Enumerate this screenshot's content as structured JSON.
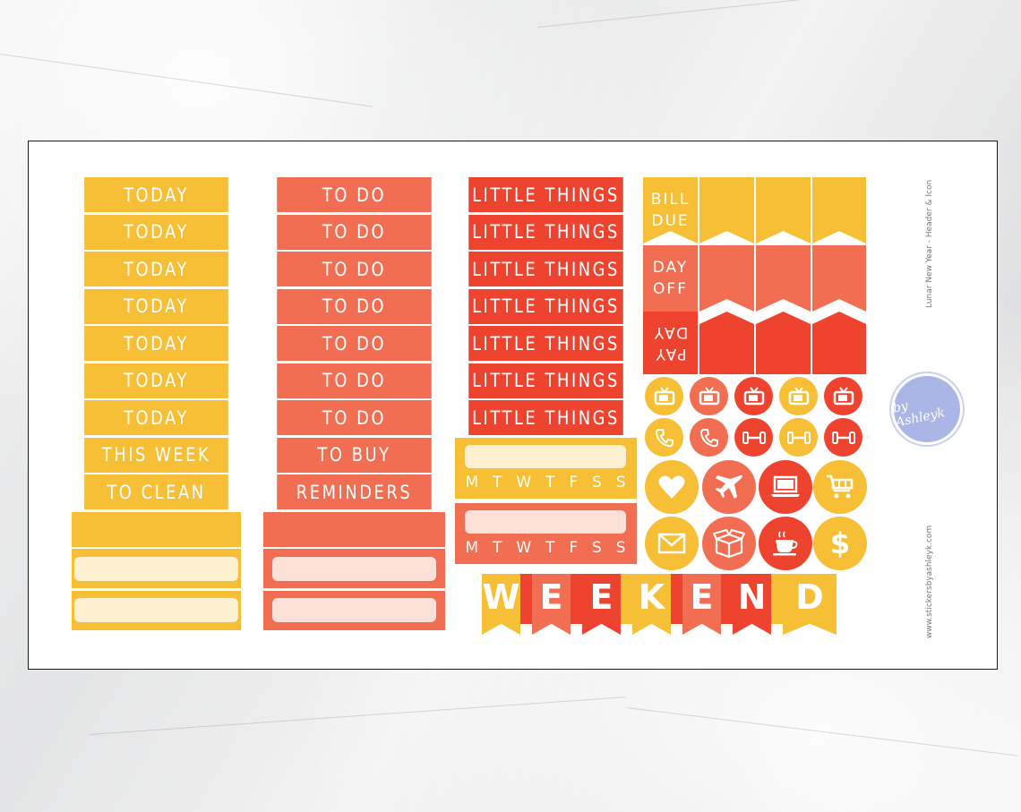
{
  "colors": {
    "yellow": "#f7bf36",
    "salmon": "#f26e52",
    "red": "#ee432e",
    "yellow_input": "#fdf0d0",
    "salmon_input": "#fde0d8"
  },
  "column_yellow": {
    "strips": [
      "TODAY",
      "TODAY",
      "TODAY",
      "TODAY",
      "TODAY",
      "TODAY",
      "TODAY",
      "THIS WEEK",
      "TO CLEAN"
    ]
  },
  "column_salmon": {
    "strips": [
      "TO DO",
      "TO DO",
      "TO DO",
      "TO DO",
      "TO DO",
      "TO DO",
      "TO DO",
      "TO BUY",
      "REMINDERS"
    ]
  },
  "column_red": {
    "strips": [
      "LITTLE THINGS",
      "LITTLE THINGS",
      "LITTLE THINGS",
      "LITTLE THINGS",
      "LITTLE THINGS",
      "LITTLE THINGS",
      "LITTLE THINGS"
    ]
  },
  "trackers": {
    "days": [
      "M",
      "T",
      "W",
      "T",
      "F",
      "S",
      "S"
    ]
  },
  "flags": {
    "bill_due": [
      "BILL",
      "DUE"
    ],
    "day_off": [
      "DAY",
      "OFF"
    ],
    "pay_day": [
      "PAY",
      "DAY"
    ]
  },
  "circle_icons": [
    [
      "tv-icon",
      "tv-icon",
      "tv-icon",
      "tv-icon",
      "tv-icon"
    ],
    [
      "phone-icon",
      "phone-icon",
      "dumbbell-icon",
      "dumbbell-icon",
      "dumbbell-icon"
    ],
    [
      "heart-icon",
      "airplane-icon",
      "laptop-icon",
      "cart-icon"
    ],
    [
      "envelope-icon",
      "box-icon",
      "coffee-icon",
      "dollar-icon"
    ]
  ],
  "banner": {
    "letters": [
      "W",
      "E",
      "E",
      "K",
      "E",
      "N",
      "D"
    ]
  },
  "side_text": {
    "title": "Lunar New Year - Header & Icon",
    "website": "www.stickersbyashleyk.com",
    "badge": "by Ashleyk"
  }
}
